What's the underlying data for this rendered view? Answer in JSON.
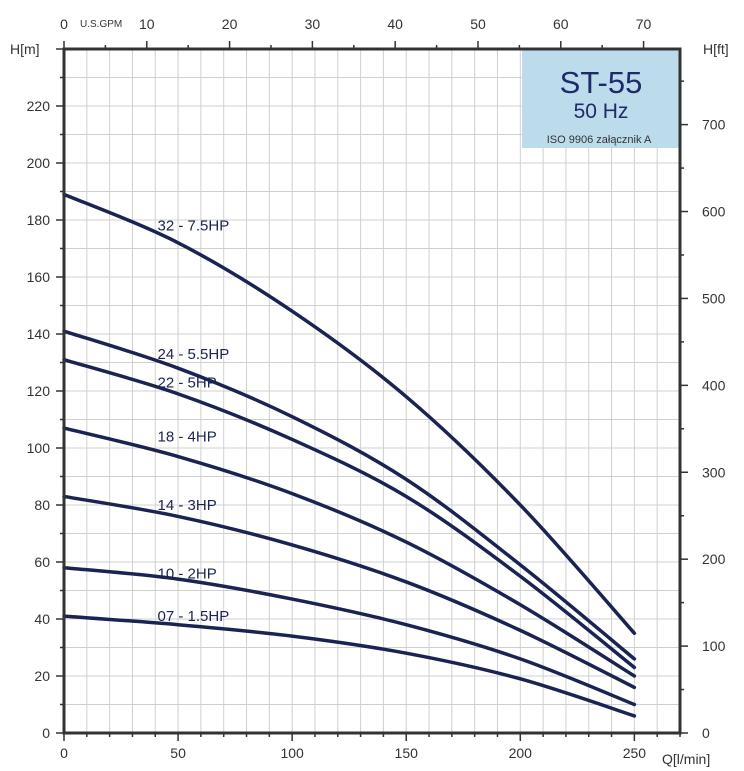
{
  "chart_data": {
    "type": "line",
    "title": "ST-55",
    "subtitle": "50 Hz",
    "note": "ISO 9906 załącznik A",
    "x_bottom": {
      "label": "Q[l/min]",
      "range": [
        0,
        270
      ],
      "ticks": [
        "0",
        "50",
        "100",
        "150",
        "200",
        "250"
      ]
    },
    "x_top": {
      "label": "U.S.GPM",
      "range": [
        0,
        74.4
      ],
      "ticks": [
        "0",
        "10",
        "20",
        "30",
        "40",
        "50",
        "60",
        "70"
      ]
    },
    "y_left": {
      "label": "H[m]",
      "range": [
        0,
        240
      ],
      "ticks": [
        "0",
        "20",
        "40",
        "60",
        "80",
        "100",
        "120",
        "140",
        "160",
        "180",
        "200",
        "220"
      ]
    },
    "y_right": {
      "label": "H[ft]",
      "range": [
        0,
        787
      ],
      "ticks": [
        "0",
        "100",
        "200",
        "300",
        "400",
        "500",
        "600",
        "700"
      ]
    },
    "grid": true,
    "series": [
      {
        "name": "32 - 7.5HP",
        "x": [
          0,
          50,
          100,
          150,
          200,
          250
        ],
        "y": [
          189,
          172,
          148,
          118,
          80,
          35
        ]
      },
      {
        "name": "24 - 5.5HP",
        "x": [
          0,
          50,
          100,
          150,
          200,
          250
        ],
        "y": [
          141,
          128,
          111,
          89,
          59,
          26
        ]
      },
      {
        "name": "22 - 5HP",
        "x": [
          0,
          50,
          100,
          150,
          200,
          250
        ],
        "y": [
          131,
          119,
          103,
          83,
          55,
          23
        ]
      },
      {
        "name": "18 - 4HP",
        "x": [
          0,
          50,
          100,
          150,
          200,
          250
        ],
        "y": [
          107,
          97,
          84,
          67,
          45,
          20
        ]
      },
      {
        "name": "14 - 3HP",
        "x": [
          0,
          50,
          100,
          150,
          200,
          250
        ],
        "y": [
          83,
          76,
          66,
          53,
          36,
          16
        ]
      },
      {
        "name": "10 - 2HP",
        "x": [
          0,
          50,
          100,
          150,
          200,
          250
        ],
        "y": [
          58,
          54,
          47,
          38,
          26,
          10
        ]
      },
      {
        "name": "07 - 1.5HP",
        "x": [
          0,
          50,
          100,
          150,
          200,
          250
        ],
        "y": [
          41,
          38,
          34,
          28,
          19,
          6
        ]
      }
    ],
    "labels": [
      {
        "text": "32 - 7.5HP",
        "x": 41,
        "y": 178
      },
      {
        "text": "24 - 5.5HP",
        "x": 41,
        "y": 133
      },
      {
        "text": "22 - 5HP",
        "x": 41,
        "y": 123
      },
      {
        "text": "18 - 4HP",
        "x": 41,
        "y": 104
      },
      {
        "text": "14 - 3HP",
        "x": 41,
        "y": 80
      },
      {
        "text": "10 - 2HP",
        "x": 41,
        "y": 56
      },
      {
        "text": "07 - 1.5HP",
        "x": 41,
        "y": 41
      }
    ]
  },
  "colors": {
    "curve": "#1b2352",
    "grid": "#d0d0d0",
    "badge": "#bcdceb",
    "axis": "#333333"
  }
}
